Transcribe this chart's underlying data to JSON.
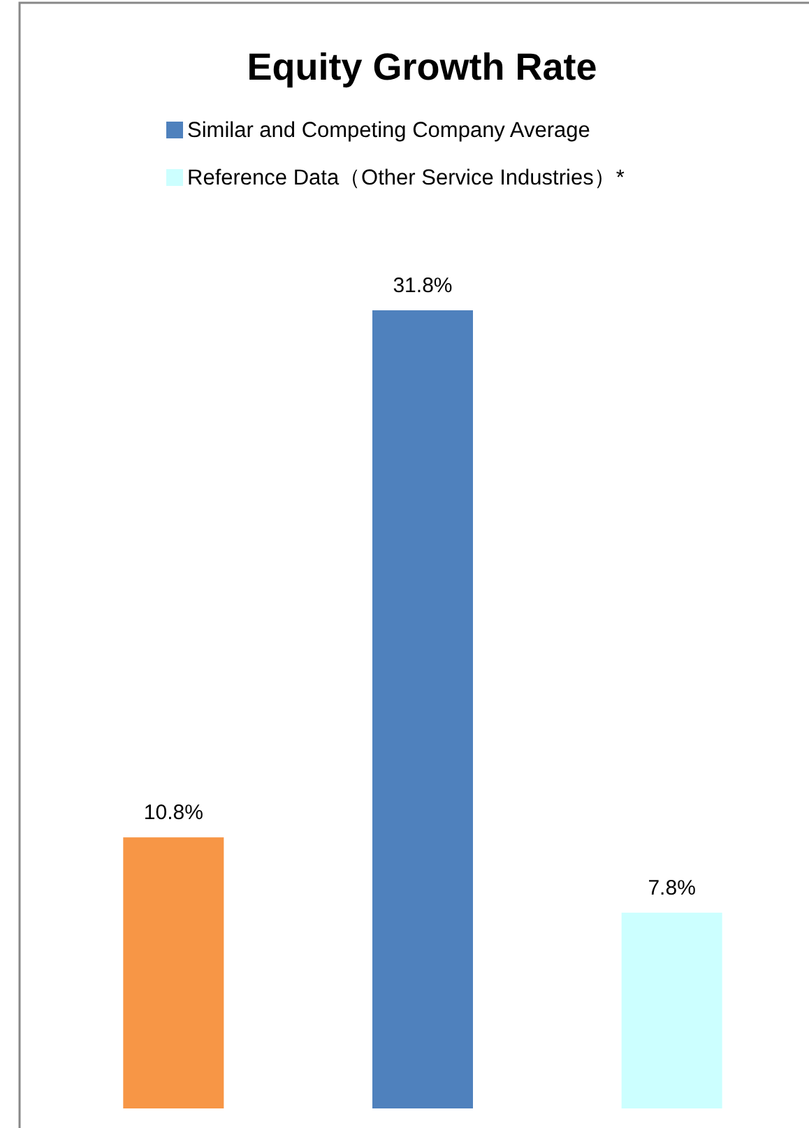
{
  "chart_data": {
    "type": "bar",
    "title": "Equity Growth Rate",
    "categories": [
      null,
      null,
      null
    ],
    "legend": "top",
    "stacked": true,
    "series": [
      {
        "color": "#f79646",
        "values": [
          10.8,
          null,
          null
        ],
        "value_labels": [
          "10.8%",
          null,
          null
        ]
      },
      {
        "name": "Similar and Competing Company Average",
        "color": "#4f81bd",
        "values": [
          null,
          31.8,
          null
        ],
        "value_labels": [
          null,
          "31.8%",
          null
        ]
      },
      {
        "name": "Reference Data（Other Service Industries）*",
        "color": "#ccffff",
        "values": [
          null,
          null,
          7.8
        ],
        "value_labels": [
          null,
          null,
          "7.8%"
        ]
      }
    ]
  }
}
